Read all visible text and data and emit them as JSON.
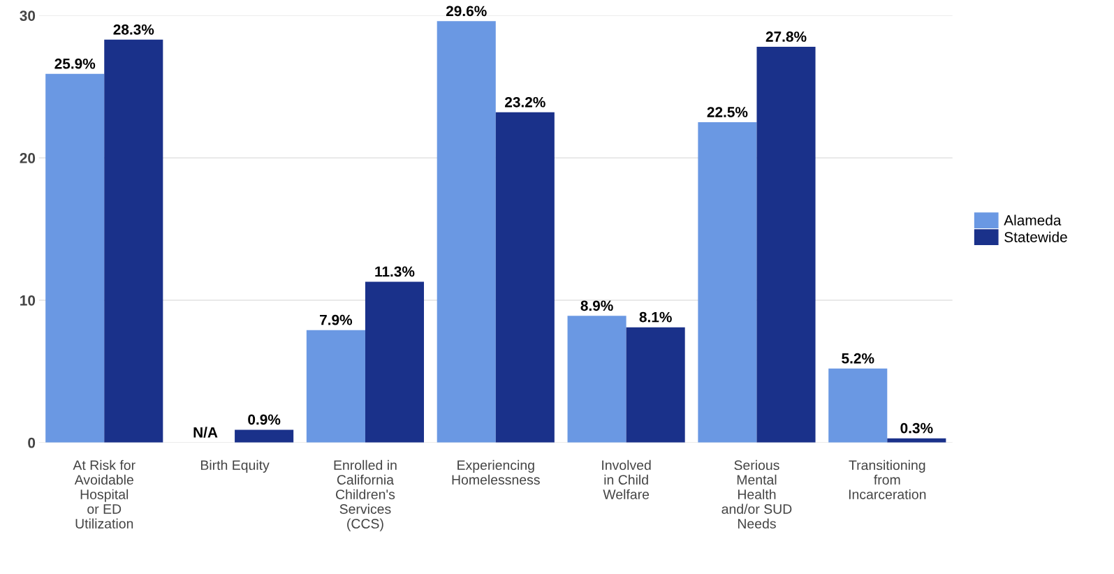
{
  "chart_data": {
    "type": "bar",
    "categories": [
      "At Risk for\nAvoidable\nHospital\nor ED\nUtilization",
      "Birth Equity",
      "Enrolled in\nCalifornia\nChildren's\nServices\n(CCS)",
      "Experiencing\nHomelessness",
      "Involved\nin Child\nWelfare",
      "Serious\nMental\nHealth\nand/or SUD\nNeeds",
      "Transitioning\nfrom\nIncarceration"
    ],
    "series": [
      {
        "name": "Alameda",
        "color": "#6a98e3",
        "values": [
          25.9,
          null,
          7.9,
          29.6,
          8.9,
          22.5,
          5.2
        ],
        "value_labels": [
          "25.9%",
          "N/A",
          "7.9%",
          "29.6%",
          "8.9%",
          "22.5%",
          "5.2%"
        ]
      },
      {
        "name": "Statewide",
        "color": "#1a318a",
        "values": [
          28.3,
          0.9,
          11.3,
          23.2,
          8.1,
          27.8,
          0.3
        ],
        "value_labels": [
          "28.3%",
          "0.9%",
          "11.3%",
          "23.2%",
          "8.1%",
          "27.8%",
          "0.3%"
        ]
      }
    ],
    "ylim": [
      0,
      30
    ],
    "yticks": [
      0,
      10,
      20,
      30
    ],
    "grid": "y",
    "legend": "right"
  }
}
